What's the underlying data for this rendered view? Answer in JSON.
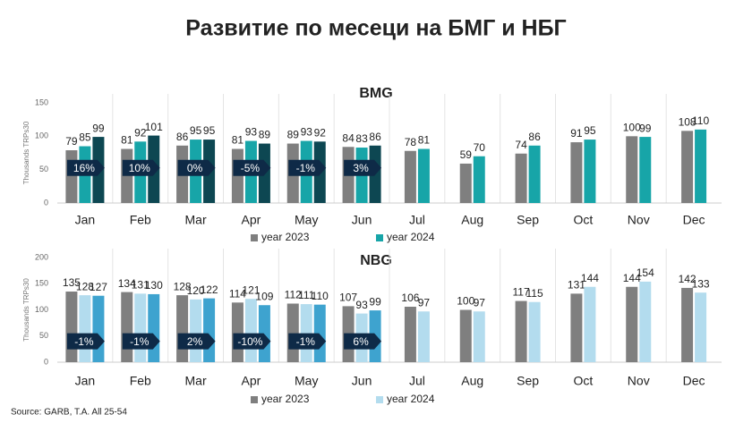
{
  "title": "Развитие по месеци на БМГ и НБГ",
  "source": "Source: GARB, T.A. All 25-54",
  "chart_data": [
    {
      "type": "bar",
      "title": "BMG",
      "ylabel": "Thousands TRPs30",
      "categories": [
        "Jan",
        "Feb",
        "Mar",
        "Apr",
        "May",
        "Jun",
        "Jul",
        "Aug",
        "Sep",
        "Oct",
        "Nov",
        "Dec"
      ],
      "series": [
        {
          "name": "year 2023",
          "color": "#7f7f7f",
          "values": [
            79,
            81,
            86,
            81,
            89,
            84,
            78,
            59,
            74,
            91,
            100,
            108
          ]
        },
        {
          "name": "year 2024",
          "color": "#17a5a8",
          "values": [
            85,
            92,
            95,
            93,
            93,
            83,
            81,
            70,
            86,
            95,
            99,
            110
          ]
        },
        {
          "color": "#0d4752",
          "values": [
            99,
            101,
            95,
            89,
            92,
            86,
            null,
            null,
            null,
            null,
            null,
            null
          ]
        }
      ],
      "changes": {
        "values": [
          16,
          10,
          0,
          -5,
          -1,
          3
        ],
        "value_labels": [
          "16%",
          "10%",
          "0%",
          "-5%",
          "-1%",
          "3%"
        ]
      },
      "ylim": [
        0,
        150
      ],
      "yticks": [
        0,
        50,
        100,
        150
      ],
      "grid": false
    },
    {
      "type": "bar",
      "title": "NBG",
      "ylabel": "Thousands TRPs30",
      "categories": [
        "Jan",
        "Feb",
        "Mar",
        "Apr",
        "May",
        "Jun",
        "Jul",
        "Aug",
        "Sep",
        "Oct",
        "Nov",
        "Dec"
      ],
      "series": [
        {
          "name": "year 2023",
          "color": "#7f7f7f",
          "values": [
            135,
            134,
            128,
            114,
            112,
            107,
            106,
            100,
            117,
            131,
            144,
            142
          ]
        },
        {
          "name": "year 2024",
          "color": "#b3dcee",
          "values": [
            128,
            131,
            120,
            121,
            111,
            93,
            97,
            97,
            115,
            144,
            154,
            133
          ]
        },
        {
          "color": "#3ea3cf",
          "values": [
            127,
            130,
            122,
            109,
            110,
            99,
            null,
            null,
            null,
            null,
            null,
            null
          ]
        }
      ],
      "changes": {
        "values": [
          -1,
          -1,
          2,
          -10,
          -1,
          6
        ],
        "value_labels": [
          "-1%",
          "-1%",
          "2%",
          "-10%",
          "-1%",
          "6%"
        ]
      },
      "ylim": [
        0,
        200
      ],
      "yticks": [
        0,
        50,
        100,
        150,
        200
      ],
      "grid": false
    }
  ]
}
